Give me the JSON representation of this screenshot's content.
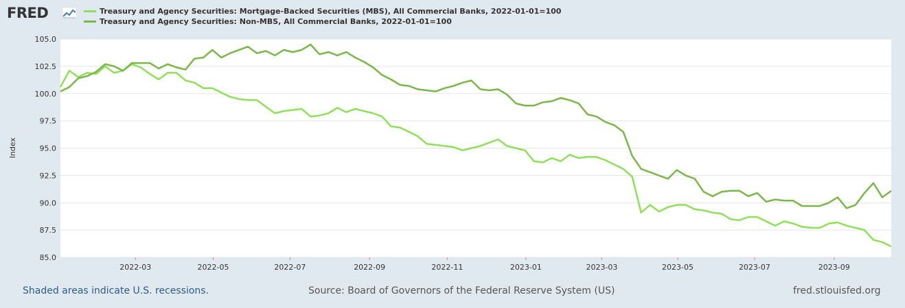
{
  "header": {
    "logo_text": "FRED",
    "logo_icon": "fred-chart-icon"
  },
  "footer": {
    "recessions_note": "Shaded areas indicate U.S. recessions.",
    "source": "Source: Board of Governors of the Federal Reserve System (US)",
    "site": "fred.stlouisfed.org"
  },
  "colors": {
    "series1": "#8ee05a",
    "series2": "#7ab648",
    "grid": "#e4e4e4",
    "background": "#e1e9f0"
  },
  "chart_data": {
    "type": "line",
    "title": "",
    "xlabel": "",
    "ylabel": "Index",
    "ylim": [
      85.0,
      105.0
    ],
    "yticks": [
      "85.0",
      "87.5",
      "90.0",
      "92.5",
      "95.0",
      "97.5",
      "100.0",
      "102.5",
      "105.0"
    ],
    "xticks": [
      {
        "label": "2022-03",
        "week": 8.4
      },
      {
        "label": "2022-05",
        "week": 17.1
      },
      {
        "label": "2022-07",
        "week": 25.7
      },
      {
        "label": "2022-09",
        "week": 34.6
      },
      {
        "label": "2022-11",
        "week": 43.3
      },
      {
        "label": "2023-01",
        "week": 52.1
      },
      {
        "label": "2023-03",
        "week": 60.6
      },
      {
        "label": "2023-05",
        "week": 69.1
      },
      {
        "label": "2023-07",
        "week": 77.7
      },
      {
        "label": "2023-09",
        "week": 86.6
      }
    ],
    "x_range": [
      0,
      93
    ],
    "grid": true,
    "legend_position": "top-left",
    "series": [
      {
        "name": "Treasury and Agency Securities: Mortgage-Backed Securities (MBS), All Commercial Banks, 2022-01-01=100",
        "color": "#8ee05a",
        "values": [
          100.6,
          102.1,
          101.5,
          101.9,
          101.8,
          102.5,
          101.9,
          102.1,
          102.7,
          102.4,
          101.8,
          101.3,
          101.9,
          101.9,
          101.2,
          101.0,
          100.5,
          100.5,
          100.1,
          99.7,
          99.5,
          99.4,
          99.4,
          98.8,
          98.2,
          98.4,
          98.5,
          98.6,
          97.9,
          98.0,
          98.2,
          98.7,
          98.3,
          98.6,
          98.4,
          98.2,
          97.9,
          97.0,
          96.9,
          96.5,
          96.1,
          95.4,
          95.3,
          95.2,
          95.1,
          94.8,
          95.0,
          95.2,
          95.5,
          95.8,
          95.2,
          95.0,
          94.8,
          93.8,
          93.7,
          94.1,
          93.8,
          94.4,
          94.1,
          94.2,
          94.2,
          93.9,
          93.5,
          93.1,
          92.4,
          89.1,
          89.8,
          89.2,
          89.6,
          89.8,
          89.8,
          89.4,
          89.3,
          89.1,
          89.0,
          88.5,
          88.4,
          88.7,
          88.7,
          88.3,
          87.9,
          88.3,
          88.1,
          87.8,
          87.7,
          87.7,
          88.1,
          88.2,
          87.9,
          87.7,
          87.5,
          86.6,
          86.4,
          86.0
        ]
      },
      {
        "name": "Treasury and Agency Securities: Non-MBS, All Commercial Banks, 2022-01-01=100",
        "color": "#7ab648",
        "values": [
          100.2,
          100.6,
          101.4,
          101.6,
          102.0,
          102.7,
          102.5,
          102.1,
          102.8,
          102.8,
          102.8,
          102.3,
          102.7,
          102.4,
          102.2,
          103.2,
          103.3,
          104.0,
          103.3,
          103.7,
          104.0,
          104.3,
          103.7,
          103.9,
          103.5,
          104.0,
          103.8,
          104.0,
          104.5,
          103.6,
          103.8,
          103.5,
          103.8,
          103.3,
          102.9,
          102.4,
          101.7,
          101.3,
          100.8,
          100.7,
          100.4,
          100.3,
          100.2,
          100.5,
          100.7,
          101.0,
          101.2,
          100.4,
          100.3,
          100.4,
          99.9,
          99.1,
          98.9,
          98.9,
          99.2,
          99.3,
          99.6,
          99.4,
          99.1,
          98.1,
          97.9,
          97.4,
          97.1,
          96.5,
          94.3,
          93.1,
          92.8,
          92.5,
          92.2,
          93.0,
          92.5,
          92.2,
          91.0,
          90.6,
          91.0,
          91.1,
          91.1,
          90.6,
          90.9,
          90.1,
          90.3,
          90.2,
          90.2,
          89.7,
          89.7,
          89.7,
          90.0,
          90.5,
          89.5,
          89.8,
          90.9,
          91.8,
          90.5,
          91.1
        ]
      }
    ]
  }
}
